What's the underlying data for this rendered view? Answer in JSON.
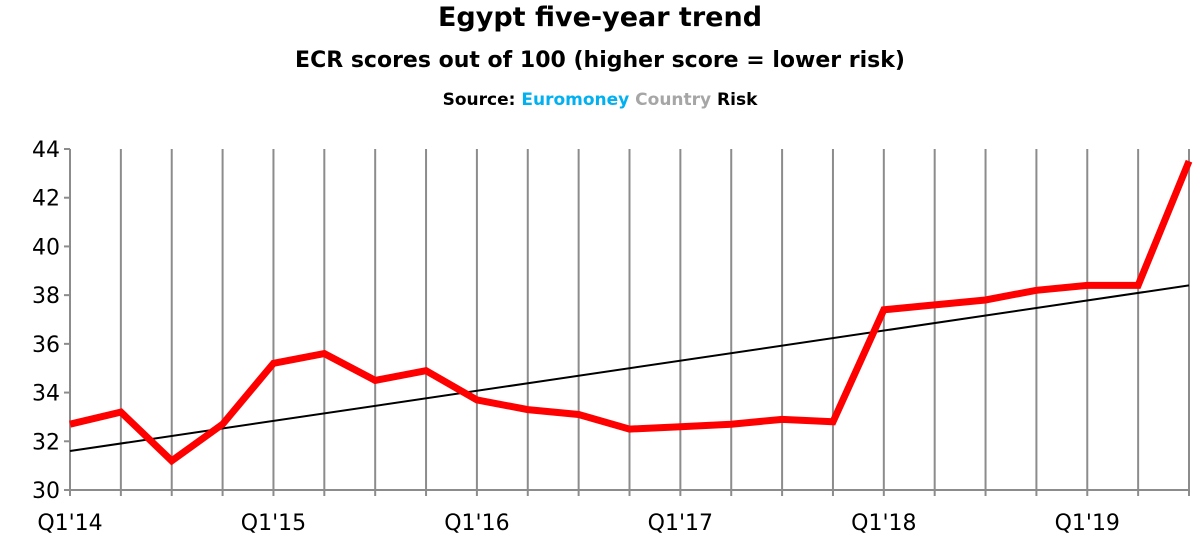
{
  "chart_data": {
    "type": "line",
    "title": "Egypt five-year trend",
    "subtitle": "ECR scores out of 100 (higher score = lower risk)",
    "source": {
      "prefix": "Source:",
      "parts": [
        {
          "text": "Euromoney",
          "color": "#00b0f0"
        },
        {
          "text": "Country",
          "color": "#a6a6a6"
        },
        {
          "text": "Risk",
          "color": "#000000"
        }
      ]
    },
    "xlabel": "",
    "ylabel": "",
    "ylim": [
      30,
      44
    ],
    "yticks": [
      30,
      32,
      34,
      36,
      38,
      40,
      42,
      44
    ],
    "x_tick_labels": [
      {
        "index": 0,
        "label": "Q1'14"
      },
      {
        "index": 4,
        "label": "Q1'15"
      },
      {
        "index": 8,
        "label": "Q1'16"
      },
      {
        "index": 12,
        "label": "Q1'17"
      },
      {
        "index": 16,
        "label": "Q1'18"
      },
      {
        "index": 20,
        "label": "Q1'19"
      }
    ],
    "grid": "vertical",
    "series": [
      {
        "color": "#ff0000",
        "values": [
          32.7,
          33.2,
          31.2,
          32.7,
          35.2,
          35.6,
          34.5,
          34.9,
          33.7,
          33.3,
          33.1,
          32.5,
          32.6,
          32.7,
          32.9,
          32.8,
          37.4,
          37.6,
          37.8,
          38.2,
          38.4,
          38.4,
          43.5
        ]
      }
    ],
    "trendline": {
      "color": "#000000",
      "start": 31.6,
      "end": 38.4
    }
  }
}
